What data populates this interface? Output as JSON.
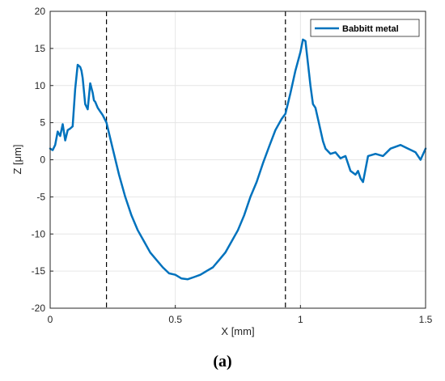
{
  "chart_data": {
    "type": "line",
    "xlabel": "X [mm]",
    "ylabel": "Z [μm]",
    "xlim": [
      0,
      1.5
    ],
    "ylim": [
      -20,
      20
    ],
    "xticks": [
      0,
      0.5,
      1,
      1.5
    ],
    "xtick_labels": [
      "0",
      "0.5",
      "1",
      "1.5"
    ],
    "yticks": [
      -20,
      -15,
      -10,
      -5,
      0,
      5,
      10,
      15,
      20
    ],
    "ytick_labels": [
      "-20",
      "-15",
      "-10",
      "-5",
      "0",
      "5",
      "10",
      "15",
      "20"
    ],
    "grid": true,
    "legend_position": "top-right",
    "line_color": "#0072BD",
    "vertical_dashed_lines_x": [
      0.225,
      0.94
    ],
    "series": [
      {
        "name": "Babbitt metal",
        "x": [
          0.0,
          0.01,
          0.02,
          0.03,
          0.04,
          0.05,
          0.06,
          0.07,
          0.08,
          0.09,
          0.1,
          0.11,
          0.12,
          0.125,
          0.13,
          0.14,
          0.15,
          0.16,
          0.17,
          0.175,
          0.18,
          0.19,
          0.2,
          0.21,
          0.225,
          0.25,
          0.275,
          0.3,
          0.325,
          0.35,
          0.375,
          0.4,
          0.425,
          0.45,
          0.475,
          0.5,
          0.525,
          0.55,
          0.575,
          0.6,
          0.625,
          0.65,
          0.675,
          0.7,
          0.725,
          0.75,
          0.775,
          0.8,
          0.825,
          0.85,
          0.875,
          0.9,
          0.925,
          0.94,
          0.96,
          0.98,
          1.0,
          1.01,
          1.02,
          1.03,
          1.04,
          1.05,
          1.06,
          1.07,
          1.08,
          1.09,
          1.1,
          1.12,
          1.14,
          1.16,
          1.18,
          1.2,
          1.22,
          1.23,
          1.24,
          1.25,
          1.27,
          1.3,
          1.33,
          1.36,
          1.4,
          1.43,
          1.46,
          1.48,
          1.5
        ],
        "y": [
          1.5,
          1.3,
          2.0,
          3.8,
          3.2,
          4.8,
          2.6,
          4.0,
          4.2,
          4.5,
          9.5,
          12.8,
          12.5,
          12.0,
          11.0,
          7.5,
          6.8,
          10.3,
          9.0,
          8.0,
          7.8,
          7.0,
          6.5,
          6.0,
          5.0,
          1.5,
          -2.0,
          -5.0,
          -7.5,
          -9.5,
          -11.0,
          -12.5,
          -13.5,
          -14.5,
          -15.3,
          -15.5,
          -16.0,
          -16.1,
          -15.8,
          -15.5,
          -15.0,
          -14.5,
          -13.5,
          -12.5,
          -11.0,
          -9.5,
          -7.5,
          -5.0,
          -3.0,
          -0.5,
          1.8,
          4.0,
          5.5,
          6.2,
          9.0,
          12.0,
          14.5,
          16.2,
          16.0,
          13.0,
          10.0,
          7.5,
          7.0,
          5.5,
          4.0,
          2.5,
          1.5,
          0.8,
          1.0,
          0.2,
          0.5,
          -1.5,
          -2.0,
          -1.5,
          -2.5,
          -3.0,
          0.5,
          0.8,
          0.5,
          1.5,
          2.0,
          1.5,
          1.0,
          0.0,
          1.5
        ]
      }
    ]
  },
  "caption": "(a)"
}
